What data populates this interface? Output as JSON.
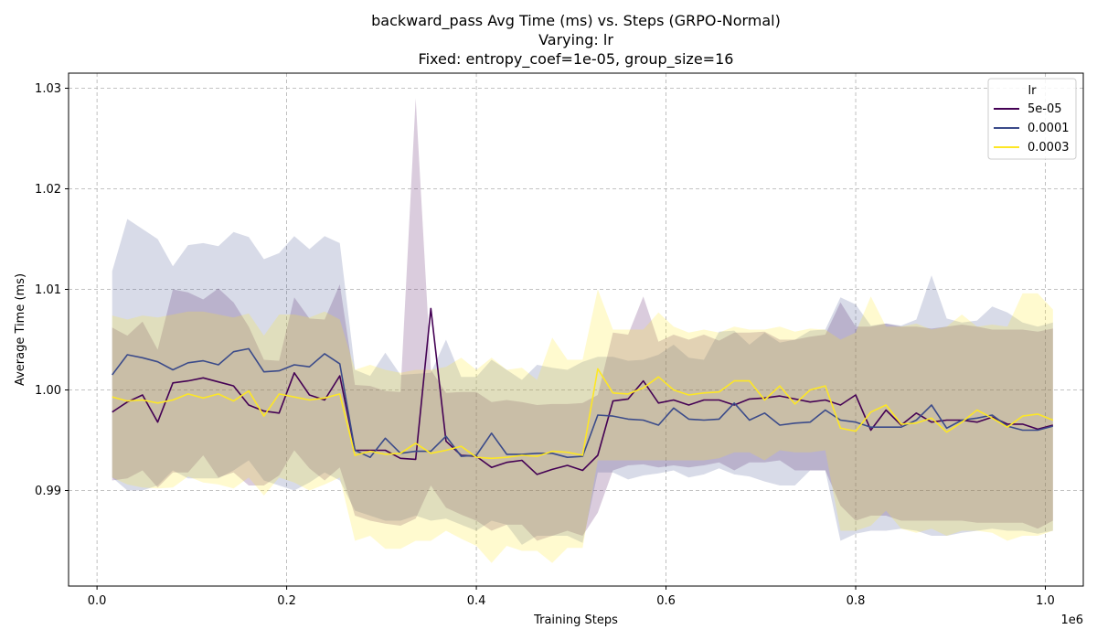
{
  "chart_data": {
    "type": "line",
    "title_lines": [
      "backward_pass Avg Time (ms) vs. Steps (GRPO-Normal)",
      "Varying: lr",
      "Fixed: entropy_coef=1e-05, group_size=16"
    ],
    "xlabel": "Training Steps",
    "ylabel": "Average Time (ms)",
    "x_offset_label": "1e6",
    "xlim": [
      -0.03,
      1.04
    ],
    "ylim": [
      0.9805,
      1.0315
    ],
    "x_ticks": [
      0.0,
      0.2,
      0.4,
      0.6,
      0.8,
      1.0
    ],
    "x_tick_labels": [
      "0.0",
      "0.2",
      "0.4",
      "0.6",
      "0.8",
      "1.0"
    ],
    "y_ticks": [
      0.99,
      1.0,
      1.01,
      1.02,
      1.03
    ],
    "y_tick_labels": [
      "0.99",
      "1.00",
      "1.01",
      "1.02",
      "1.03"
    ],
    "grid": true,
    "legend_title": "lr",
    "legend_position": "upper right",
    "x": [
      0.016,
      0.032,
      0.048,
      0.064,
      0.08,
      0.096,
      0.112,
      0.128,
      0.144,
      0.16,
      0.176,
      0.192,
      0.208,
      0.224,
      0.24,
      0.256,
      0.272,
      0.288,
      0.304,
      0.32,
      0.336,
      0.352,
      0.368,
      0.384,
      0.4,
      0.416,
      0.432,
      0.448,
      0.464,
      0.48,
      0.496,
      0.512,
      0.528,
      0.544,
      0.56,
      0.576,
      0.592,
      0.608,
      0.624,
      0.64,
      0.656,
      0.672,
      0.688,
      0.704,
      0.72,
      0.736,
      0.752,
      0.768,
      0.784,
      0.8,
      0.816,
      0.832,
      0.848,
      0.864,
      0.88,
      0.896,
      0.912,
      0.928,
      0.944,
      0.96,
      0.976,
      0.992,
      1.008
    ],
    "series": [
      {
        "name": "5e-05",
        "color": "#440154",
        "values": [
          0.9978,
          0.9988,
          0.9995,
          0.9968,
          1.0007,
          1.0009,
          1.0012,
          1.0008,
          1.0004,
          0.9985,
          0.9979,
          0.9977,
          1.0017,
          0.9995,
          0.999,
          1.0014,
          0.994,
          0.994,
          0.994,
          0.9932,
          0.9931,
          1.0081,
          0.9949,
          0.9935,
          0.9934,
          0.9923,
          0.9928,
          0.993,
          0.9916,
          0.9921,
          0.9925,
          0.992,
          0.9935,
          0.9989,
          0.9991,
          1.0009,
          0.9987,
          0.999,
          0.9985,
          0.999,
          0.999,
          0.9985,
          0.9991,
          0.9992,
          0.9994,
          0.9991,
          0.9988,
          0.999,
          0.9985,
          0.9995,
          0.996,
          0.998,
          0.9965,
          0.9977,
          0.9968,
          0.997,
          0.997,
          0.9968,
          0.9973,
          0.9966,
          0.9966,
          0.9961,
          0.9965
        ],
        "upper": [
          1.0062,
          1.0054,
          1.0068,
          1.004,
          1.01,
          1.0097,
          1.009,
          1.0101,
          1.0087,
          1.0063,
          1.003,
          1.0029,
          1.0092,
          1.0071,
          1.007,
          1.0105,
          1.0005,
          1.0004,
          0.9999,
          0.9998,
          1.029,
          1.002,
          0.9997,
          0.9998,
          0.9998,
          0.9988,
          0.999,
          0.9988,
          0.9985,
          0.9986,
          0.9986,
          0.9987,
          0.9995,
          1.0057,
          1.0055,
          1.0093,
          1.0048,
          1.0055,
          1.005,
          1.0055,
          1.0049,
          1.0057,
          1.0057,
          1.0058,
          1.005,
          1.005,
          1.0053,
          1.0055,
          1.0087,
          1.0063,
          1.0063,
          1.0066,
          1.0063,
          1.0063,
          1.0061,
          1.0063,
          1.0065,
          1.0063,
          1.006,
          1.006,
          1.006,
          1.0058,
          1.0061
        ],
        "lower": [
          0.991,
          0.9912,
          0.992,
          0.9903,
          0.9918,
          0.9918,
          0.9935,
          0.9913,
          0.9918,
          0.9905,
          0.9905,
          0.9915,
          0.994,
          0.9922,
          0.991,
          0.9923,
          0.9875,
          0.987,
          0.9867,
          0.9865,
          0.9872,
          0.9905,
          0.9883,
          0.9876,
          0.987,
          0.986,
          0.9866,
          0.9866,
          0.985,
          0.9855,
          0.986,
          0.9855,
          0.9878,
          0.992,
          0.9925,
          0.9926,
          0.9923,
          0.9925,
          0.9923,
          0.9925,
          0.9928,
          0.992,
          0.9928,
          0.9928,
          0.993,
          0.992,
          0.992,
          0.992,
          0.9885,
          0.987,
          0.9875,
          0.9875,
          0.987,
          0.987,
          0.987,
          0.987,
          0.987,
          0.9868,
          0.9868,
          0.9868,
          0.9868,
          0.9862,
          0.987
        ]
      },
      {
        "name": "0.0001",
        "color": "#3b4b8a",
        "values": [
          1.0015,
          1.0035,
          1.0032,
          1.0028,
          1.002,
          1.0027,
          1.0029,
          1.0025,
          1.0038,
          1.0041,
          1.0018,
          1.0019,
          1.0025,
          1.0023,
          1.0036,
          1.0026,
          0.994,
          0.9933,
          0.9952,
          0.9937,
          0.9939,
          0.9939,
          0.9954,
          0.9934,
          0.9935,
          0.9957,
          0.9936,
          0.9936,
          0.9937,
          0.9937,
          0.9933,
          0.9934,
          0.9975,
          0.9974,
          0.9971,
          0.997,
          0.9965,
          0.9982,
          0.9971,
          0.997,
          0.9971,
          0.9987,
          0.997,
          0.9977,
          0.9965,
          0.9967,
          0.9968,
          0.998,
          0.997,
          0.9968,
          0.9963,
          0.9963,
          0.9963,
          0.997,
          0.9985,
          0.9962,
          0.997,
          0.9972,
          0.9975,
          0.9964,
          0.996,
          0.996,
          0.9964
        ],
        "upper": [
          1.0118,
          1.017,
          1.016,
          1.015,
          1.0123,
          1.0144,
          1.0146,
          1.0143,
          1.0157,
          1.0152,
          1.013,
          1.0136,
          1.0153,
          1.014,
          1.0153,
          1.0146,
          1.002,
          1.0014,
          1.0037,
          1.0015,
          1.0016,
          1.0017,
          1.005,
          1.0013,
          1.0013,
          1.003,
          1.002,
          1.001,
          1.0025,
          1.0022,
          1.002,
          1.0028,
          1.0033,
          1.0033,
          1.0029,
          1.003,
          1.0035,
          1.0045,
          1.0032,
          1.003,
          1.0058,
          1.0059,
          1.0045,
          1.0057,
          1.0047,
          1.005,
          1.0059,
          1.006,
          1.0092,
          1.0085,
          1.0064,
          1.0066,
          1.0064,
          1.007,
          1.0114,
          1.0071,
          1.0067,
          1.0069,
          1.0083,
          1.0077,
          1.0067,
          1.0063,
          1.0067
        ],
        "lower": [
          0.9913,
          0.99,
          0.99,
          0.9905,
          0.992,
          0.9912,
          0.9912,
          0.9912,
          0.992,
          0.993,
          0.991,
          0.9905,
          0.99,
          0.9908,
          0.9918,
          0.991,
          0.988,
          0.9875,
          0.987,
          0.987,
          0.9875,
          0.987,
          0.9872,
          0.9866,
          0.986,
          0.987,
          0.9866,
          0.9846,
          0.9855,
          0.9855,
          0.9855,
          0.9848,
          0.9918,
          0.9918,
          0.9911,
          0.9915,
          0.9917,
          0.992,
          0.9913,
          0.9916,
          0.9922,
          0.9916,
          0.9914,
          0.9909,
          0.9905,
          0.9905,
          0.992,
          0.992,
          0.985,
          0.9857,
          0.986,
          0.986,
          0.9862,
          0.986,
          0.9855,
          0.9855,
          0.9858,
          0.986,
          0.9862,
          0.986,
          0.986,
          0.9857,
          0.986
        ]
      },
      {
        "name": "0.0003",
        "color": "#fde725",
        "values": [
          0.9993,
          0.9989,
          0.999,
          0.9987,
          0.999,
          0.9996,
          0.9992,
          0.9996,
          0.9989,
          0.9999,
          0.9974,
          0.9996,
          0.9993,
          0.999,
          0.9992,
          0.9996,
          0.9935,
          0.9939,
          0.9936,
          0.9937,
          0.9947,
          0.9937,
          0.994,
          0.9944,
          0.9933,
          0.9932,
          0.9933,
          0.9935,
          0.9934,
          0.9939,
          0.9938,
          0.9935,
          1.0021,
          0.9997,
          0.9996,
          1.0002,
          1.0013,
          1.0,
          0.9995,
          0.9997,
          0.9998,
          1.0009,
          1.0009,
          0.999,
          1.0004,
          0.9986,
          1.0,
          1.0004,
          0.9962,
          0.9959,
          0.9978,
          0.9985,
          0.9966,
          0.9967,
          0.9972,
          0.9958,
          0.9968,
          0.998,
          0.9972,
          0.9963,
          0.9974,
          0.9976,
          0.997
        ],
        "upper": [
          1.0074,
          1.007,
          1.0074,
          1.0072,
          1.0075,
          1.0078,
          1.0078,
          1.0075,
          1.0072,
          1.0076,
          1.0054,
          1.0075,
          1.0075,
          1.0072,
          1.0078,
          1.007,
          1.002,
          1.0025,
          1.002,
          1.0017,
          1.002,
          1.002,
          1.0023,
          1.0032,
          1.002,
          1.0032,
          1.002,
          1.0022,
          1.001,
          1.0052,
          1.003,
          1.003,
          1.01,
          1.006,
          1.006,
          1.006,
          1.0077,
          1.0063,
          1.0057,
          1.006,
          1.0057,
          1.0063,
          1.006,
          1.006,
          1.0063,
          1.0058,
          1.0061,
          1.006,
          1.005,
          1.0057,
          1.0093,
          1.0063,
          1.0063,
          1.0066,
          1.006,
          1.0063,
          1.0075,
          1.0063,
          1.0065,
          1.0063,
          1.0096,
          1.0096,
          1.008
        ],
        "lower": [
          0.9913,
          0.9906,
          0.9903,
          0.9902,
          0.9903,
          0.9914,
          0.9908,
          0.9906,
          0.9902,
          0.9913,
          0.9895,
          0.9913,
          0.9908,
          0.99,
          0.9906,
          0.9913,
          0.985,
          0.9855,
          0.9842,
          0.9842,
          0.985,
          0.985,
          0.986,
          0.9852,
          0.9845,
          0.9828,
          0.9845,
          0.984,
          0.984,
          0.9828,
          0.9843,
          0.9843,
          0.993,
          0.993,
          0.993,
          0.993,
          0.993,
          0.993,
          0.993,
          0.993,
          0.9932,
          0.9938,
          0.9938,
          0.993,
          0.994,
          0.9938,
          0.9938,
          0.994,
          0.986,
          0.986,
          0.9865,
          0.988,
          0.9862,
          0.9858,
          0.9862,
          0.9855,
          0.986,
          0.986,
          0.9858,
          0.985,
          0.9855,
          0.9855,
          0.986
        ]
      }
    ]
  }
}
